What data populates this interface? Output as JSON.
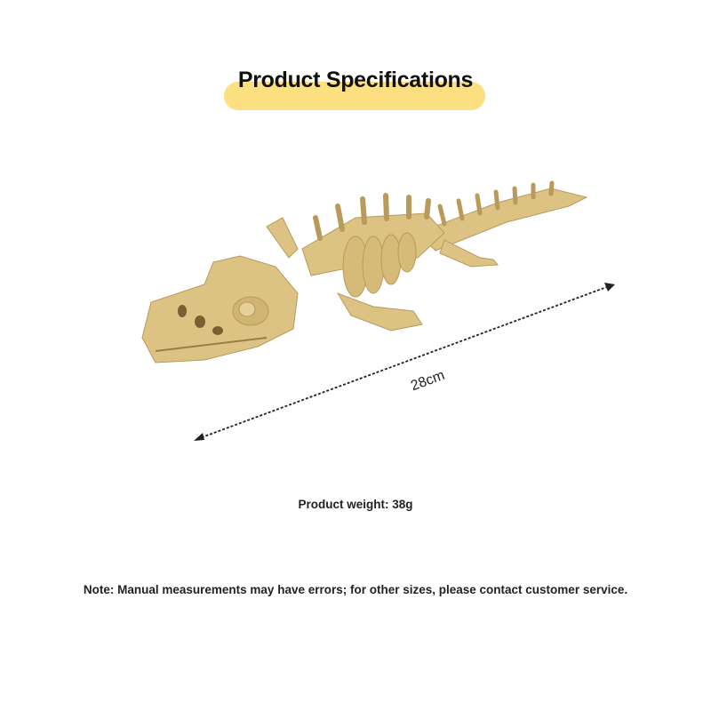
{
  "header": {
    "title": "Product Specifications"
  },
  "product": {
    "image": "crocodile-skeleton-toy",
    "length_label": "28cm",
    "weight_label": "Product weight: 38g",
    "color": "#dcc283"
  },
  "footer": {
    "note": "Note: Manual measurements may have errors; for other sizes, please contact customer service."
  },
  "colors": {
    "accent": "#fcdf80",
    "text": "#222222"
  }
}
